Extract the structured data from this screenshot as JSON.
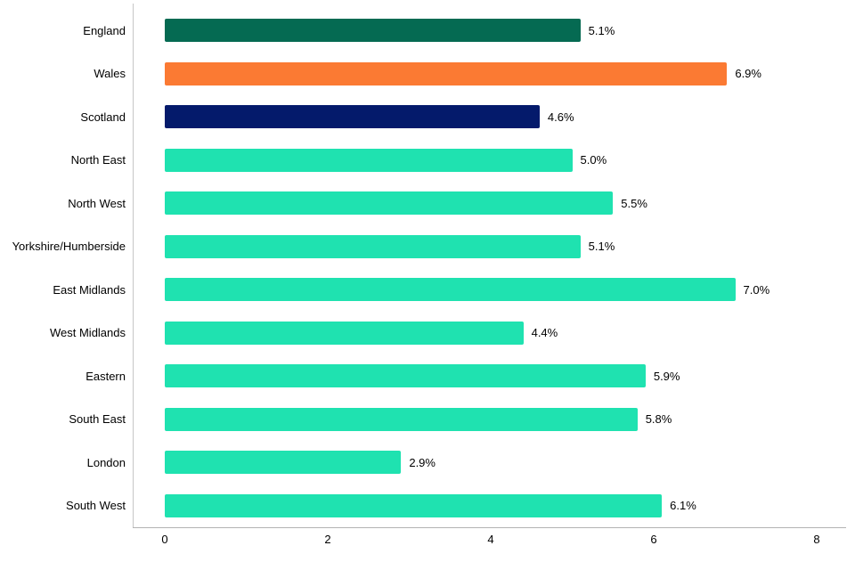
{
  "chart_data": {
    "type": "bar",
    "orientation": "horizontal",
    "title": "",
    "xlabel": "",
    "ylabel": "",
    "categories": [
      "England",
      "Wales",
      "Scotland",
      "North East",
      "North West",
      "Yorkshire/Humberside",
      "East Midlands",
      "West Midlands",
      "Eastern",
      "South East",
      "London",
      "South West"
    ],
    "values": [
      5.1,
      6.9,
      4.6,
      5.0,
      5.5,
      5.1,
      7.0,
      4.4,
      5.9,
      5.8,
      2.9,
      6.1
    ],
    "value_labels": [
      "5.1%",
      "6.9%",
      "4.6%",
      "5.0%",
      "5.5%",
      "5.1%",
      "7.0%",
      "4.4%",
      "5.9%",
      "5.8%",
      "2.9%",
      "6.1%"
    ],
    "bar_colors": [
      "#056a52",
      "#fb7a33",
      "#041a6b",
      "#1fe2b0",
      "#1fe2b0",
      "#1fe2b0",
      "#1fe2b0",
      "#1fe2b0",
      "#1fe2b0",
      "#1fe2b0",
      "#1fe2b0",
      "#1fe2b0"
    ],
    "xlim": [
      0,
      8
    ],
    "x_ticks": [
      "0",
      "2",
      "4",
      "6",
      "8"
    ],
    "grid": false,
    "legend": false
  },
  "colors": {
    "england_green": "#056a52",
    "wales_orange": "#fb7a33",
    "scotland_navy": "#041a6b",
    "region_mint": "#1fe2b0",
    "axis_line_gray": "#b3b3b3",
    "text": "#000000"
  }
}
